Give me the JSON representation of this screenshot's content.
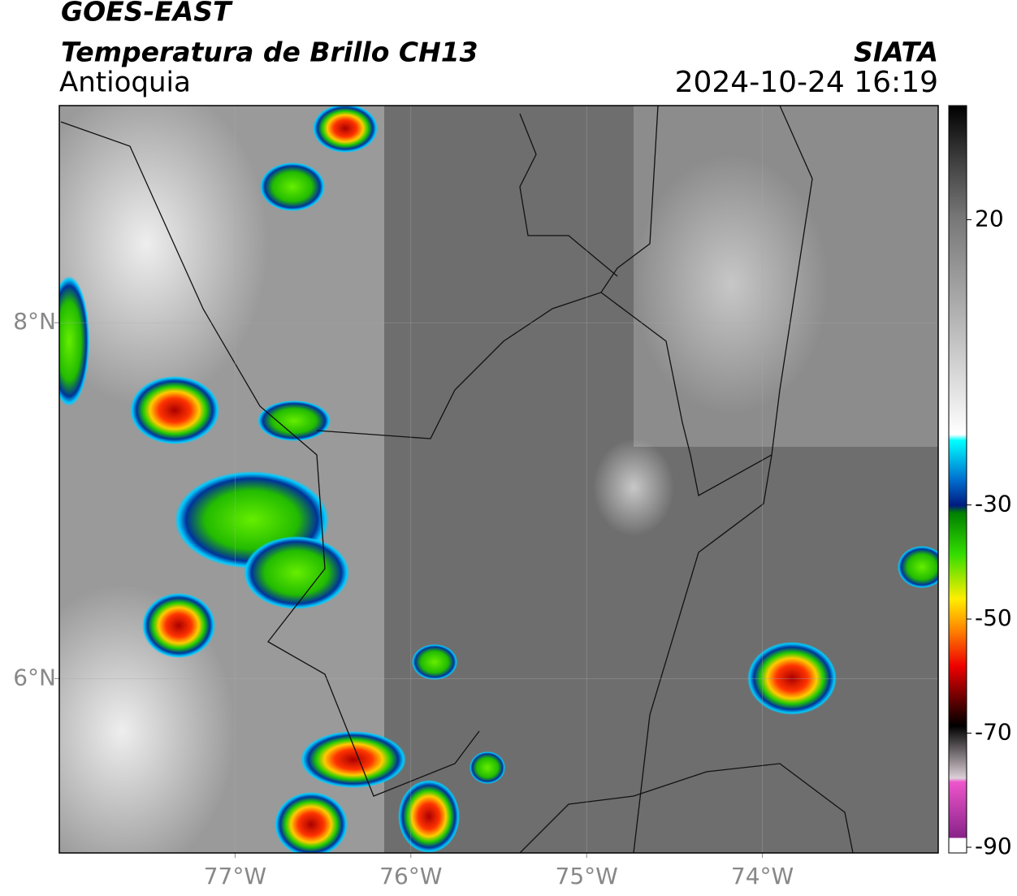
{
  "header": {
    "satellite": "GOES-EAST",
    "product": "Temperatura de Brillo CH13",
    "region": "Antioquia",
    "source": "SIATA",
    "datetime": "2024-10-24 16:19"
  },
  "map": {
    "xlim": [
      -78,
      -73
    ],
    "ylim": [
      5.02,
      9.22
    ],
    "xticks": [
      {
        "value": -77,
        "label": "77°W"
      },
      {
        "value": -76,
        "label": "76°W"
      },
      {
        "value": -75,
        "label": "75°W"
      },
      {
        "value": -74,
        "label": "74°W"
      }
    ],
    "yticks": [
      {
        "value": 8,
        "label": "8°N"
      },
      {
        "value": 6,
        "label": "6°N"
      }
    ],
    "grid": true
  },
  "colorbar": {
    "lim": [
      -91,
      40
    ],
    "ticks": [
      20,
      -30,
      -50,
      -70,
      -90
    ]
  }
}
